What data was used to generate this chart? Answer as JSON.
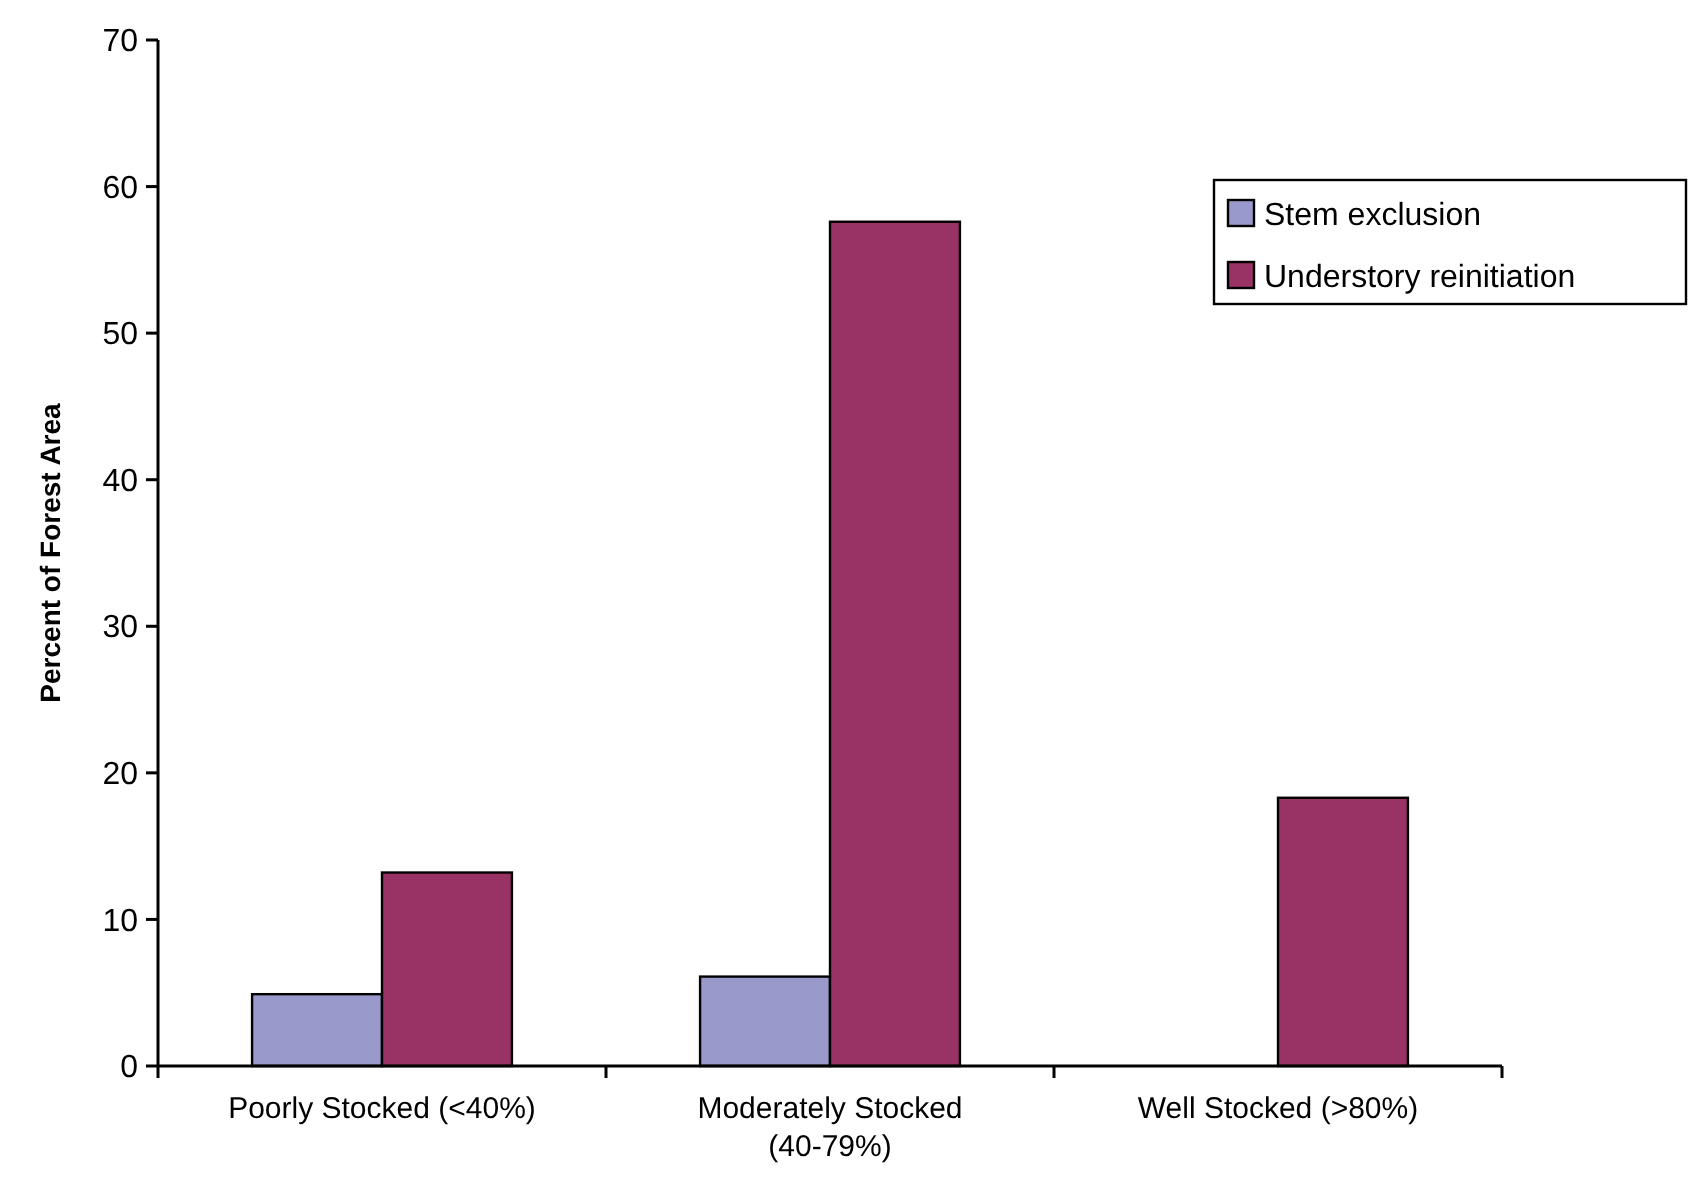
{
  "chart_data": {
    "type": "bar",
    "ylabel": "Percent of Forest Area",
    "categories": [
      "Poorly Stocked (<40%)",
      "Moderately Stocked (40-79%)",
      "Well Stocked (>80%)"
    ],
    "series": [
      {
        "name": "Stem exclusion",
        "color": "#9999cc",
        "values": [
          4.9,
          6.1,
          null
        ]
      },
      {
        "name": "Understory reinitiation",
        "color": "#993366",
        "values": [
          13.2,
          57.6,
          18.3
        ]
      }
    ],
    "ylim": [
      0,
      70
    ],
    "yticks": [
      0,
      10,
      20,
      30,
      40,
      50,
      60,
      70
    ],
    "grid": false,
    "legend": "top right"
  }
}
